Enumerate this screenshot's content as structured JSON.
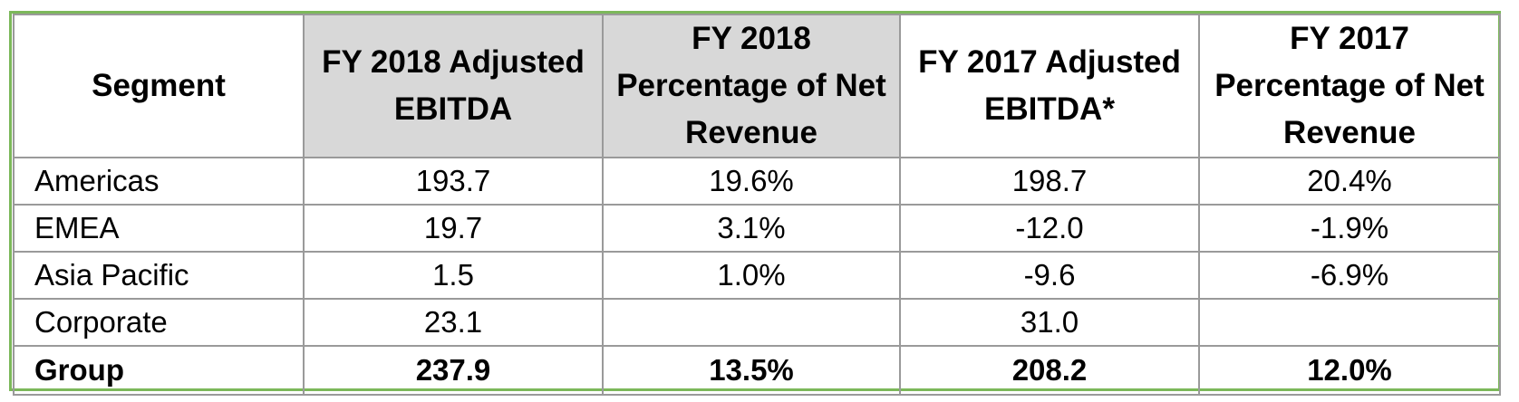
{
  "table": {
    "headers": [
      "Segment",
      "FY 2018 Adjusted EBITDA",
      "FY 2018 Percentage of Net Revenue",
      "FY 2017 Adjusted EBITDA*",
      "FY 2017 Percentage of Net Revenue"
    ],
    "rows": [
      [
        "Americas",
        "193.7",
        "19.6%",
        "198.7",
        "20.4%"
      ],
      [
        "EMEA",
        "19.7",
        "3.1%",
        "-12.0",
        "-1.9%"
      ],
      [
        "Asia Pacific",
        "1.5",
        "1.0%",
        "-9.6",
        "-6.9%"
      ],
      [
        "Corporate",
        "23.1",
        "",
        "31.0",
        ""
      ]
    ],
    "total": [
      "Group",
      "237.9",
      "13.5%",
      "208.2",
      "12.0%"
    ],
    "shaded_column_color": "#d8d8d8",
    "border_accent_color": "#7cb85a"
  }
}
